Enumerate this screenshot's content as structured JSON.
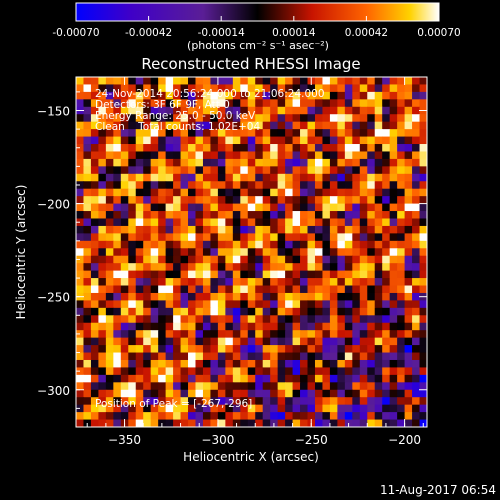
{
  "colorbar": {
    "ticks": [
      "-0.00070",
      "-0.00042",
      "-0.00014",
      "0.00014",
      "0.00042",
      "0.00070"
    ],
    "unit_label": "(photons cm⁻² s⁻¹ asec⁻²)"
  },
  "footer": {
    "timestamp": "11-Aug-2017 06:54"
  },
  "chart_data": {
    "type": "heatmap",
    "title": "Reconstructed RHESSI Image",
    "xlabel": "Heliocentric X (arcsec)",
    "ylabel": "Heliocentric Y (arcsec)",
    "xlim": [
      -376,
      -188
    ],
    "ylim": [
      -320,
      -132
    ],
    "x_ticks": [
      -350,
      -300,
      -250,
      -200
    ],
    "x_tick_labels": [
      "−350",
      "−300",
      "−250",
      "−200"
    ],
    "y_ticks": [
      -300,
      -250,
      -200,
      -150
    ],
    "y_tick_labels": [
      "−300",
      "−250",
      "−200",
      "−150"
    ],
    "color_range": [
      -0.0007,
      0.0007
    ],
    "colormap": [
      "#0000ff",
      "#3f00c8",
      "#5a1e96",
      "#000000",
      "#c81400",
      "#ff6400",
      "#ffd200",
      "#ffffff"
    ],
    "annotations": [
      "24-Nov-2014 20:56:24.000 to 21:06:24.000",
      "Detectors: 3F 6F 9F, Att 0",
      "Energy Range: 25.0 - 50.0 keV",
      "Clean    Total counts: 1.02E+04"
    ],
    "peak_label": "Position of Peak = [-267,-296]",
    "peak_position": [
      -267,
      -296
    ]
  }
}
